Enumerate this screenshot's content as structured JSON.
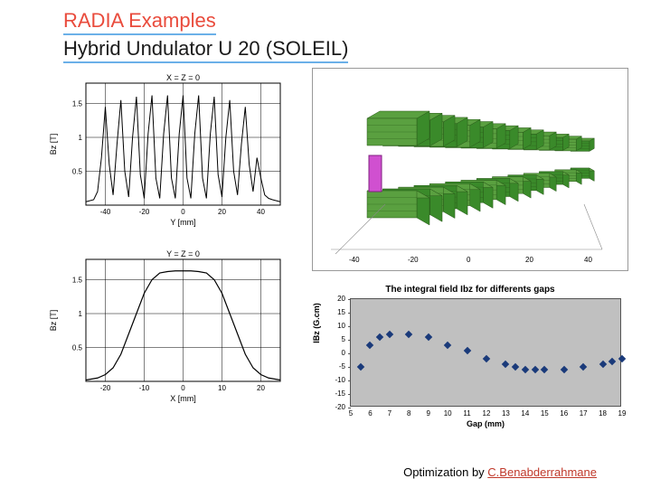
{
  "titles": {
    "line1": "RADIA Examples",
    "line2": "Hybrid Undulator U 20 (SOLEIL)"
  },
  "credit": {
    "prefix": "Optimization by ",
    "name": "C.Benabderrahmane"
  },
  "chart_topleft": {
    "type": "line",
    "title": "X = Z = 0",
    "xlabel": "Y [mm]",
    "ylabel": "Bz [T]",
    "xlim": [
      -50,
      50
    ],
    "ylim": [
      0,
      1.8
    ],
    "xticks": [
      -40,
      -20,
      0,
      20,
      40
    ],
    "yticks": [
      0.5,
      1,
      1.5
    ],
    "line_color": "#000000",
    "grid_color": "#000000",
    "background_color": "#ffffff",
    "values_x": [
      -50,
      -46,
      -44,
      -42,
      -40,
      -38,
      -36,
      -34,
      -32,
      -30,
      -28,
      -26,
      -24,
      -22,
      -20,
      -18,
      -16,
      -14,
      -12,
      -10,
      -8,
      -6,
      -4,
      -2,
      0,
      2,
      4,
      6,
      8,
      10,
      12,
      14,
      16,
      18,
      20,
      22,
      24,
      26,
      28,
      30,
      32,
      34,
      36,
      38,
      40,
      42,
      44,
      46,
      50
    ],
    "values_y": [
      0.05,
      0.08,
      0.2,
      0.7,
      1.45,
      0.6,
      0.15,
      0.9,
      1.55,
      0.5,
      0.12,
      1.0,
      1.6,
      0.45,
      0.1,
      1.05,
      1.62,
      0.4,
      0.1,
      1.05,
      1.62,
      0.4,
      0.1,
      1.05,
      1.62,
      0.4,
      0.1,
      1.05,
      1.62,
      0.4,
      0.1,
      1.05,
      1.6,
      0.45,
      0.12,
      1.0,
      1.55,
      0.5,
      0.15,
      0.9,
      1.45,
      0.6,
      0.2,
      0.7,
      0.4,
      0.15,
      0.1,
      0.08,
      0.05
    ]
  },
  "chart_bottomleft": {
    "type": "line",
    "title": "Y = Z = 0",
    "xlabel": "X [mm]",
    "ylabel": "Bz [T]",
    "xlim": [
      -25,
      25
    ],
    "ylim": [
      0,
      1.8
    ],
    "xticks": [
      -20,
      -10,
      0,
      10,
      20
    ],
    "yticks": [
      0.5,
      1,
      1.5
    ],
    "line_color": "#000000",
    "grid_color": "#000000",
    "background_color": "#ffffff",
    "values_x": [
      -25,
      -22,
      -20,
      -18,
      -16,
      -14,
      -12,
      -10,
      -8,
      -6,
      -4,
      -2,
      0,
      2,
      4,
      6,
      8,
      10,
      12,
      14,
      16,
      18,
      20,
      22,
      25
    ],
    "values_y": [
      0.02,
      0.05,
      0.1,
      0.2,
      0.4,
      0.7,
      1.0,
      1.3,
      1.5,
      1.6,
      1.62,
      1.63,
      1.63,
      1.63,
      1.62,
      1.6,
      1.5,
      1.3,
      1.0,
      0.7,
      0.4,
      0.2,
      0.1,
      0.05,
      0.02
    ]
  },
  "undulator_3d": {
    "type": "3d-render",
    "background_color": "#ffffff",
    "pole_color_primary": "#3a8a2a",
    "pole_color_shade": "#5aa040",
    "magnet_color": "#d050d0",
    "edge_color": "#2a5a1a",
    "axis_color": "#888888",
    "n_periods": 14,
    "axis_ticks": [
      -40,
      -20,
      0,
      20,
      40
    ]
  },
  "chart_bottomright": {
    "type": "scatter",
    "title": "The integral field Ibz for differents gaps",
    "xlabel": "Gap (mm)",
    "ylabel": "IBz (G.cm)",
    "xlim": [
      5,
      19
    ],
    "ylim": [
      -20,
      20
    ],
    "xticks": [
      5,
      6,
      7,
      8,
      9,
      10,
      11,
      12,
      13,
      14,
      15,
      16,
      17,
      18,
      19
    ],
    "yticks": [
      -20,
      -15,
      -10,
      -5,
      0,
      5,
      10,
      15,
      20
    ],
    "background_color": "#c0c0c0",
    "marker_color": "#1a3a7a",
    "title_fontsize": 10,
    "label_fontsize": 9,
    "points": [
      {
        "x": 5.5,
        "y": -5
      },
      {
        "x": 6,
        "y": 3
      },
      {
        "x": 6.5,
        "y": 6
      },
      {
        "x": 7,
        "y": 7
      },
      {
        "x": 8,
        "y": 7
      },
      {
        "x": 9,
        "y": 6
      },
      {
        "x": 10,
        "y": 3
      },
      {
        "x": 11,
        "y": 1
      },
      {
        "x": 12,
        "y": -2
      },
      {
        "x": 13,
        "y": -4
      },
      {
        "x": 13.5,
        "y": -5
      },
      {
        "x": 14,
        "y": -6
      },
      {
        "x": 14.5,
        "y": -6
      },
      {
        "x": 15,
        "y": -6
      },
      {
        "x": 16,
        "y": -6
      },
      {
        "x": 17,
        "y": -5
      },
      {
        "x": 18,
        "y": -4
      },
      {
        "x": 18.5,
        "y": -3
      },
      {
        "x": 19,
        "y": -2
      }
    ]
  }
}
